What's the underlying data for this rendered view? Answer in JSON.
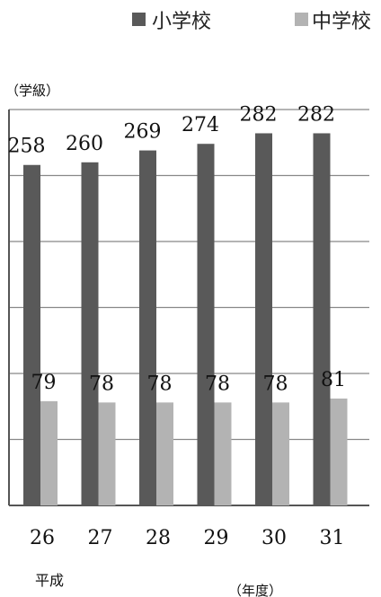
{
  "chart_data": {
    "type": "bar",
    "categories": [
      "26",
      "27",
      "28",
      "29",
      "30",
      "31"
    ],
    "series": [
      {
        "name": "小学校",
        "values": [
          258,
          260,
          269,
          274,
          282,
          282
        ],
        "color": "#595959"
      },
      {
        "name": "中学校",
        "values": [
          79,
          78,
          78,
          78,
          78,
          81
        ],
        "color": "#b3b3b3"
      }
    ],
    "ylabel": "（学級）",
    "xlabel": "（年度）",
    "era_label": "平成",
    "ylim": [
      0,
      300
    ],
    "grid": true,
    "legend_position": "top-right"
  }
}
